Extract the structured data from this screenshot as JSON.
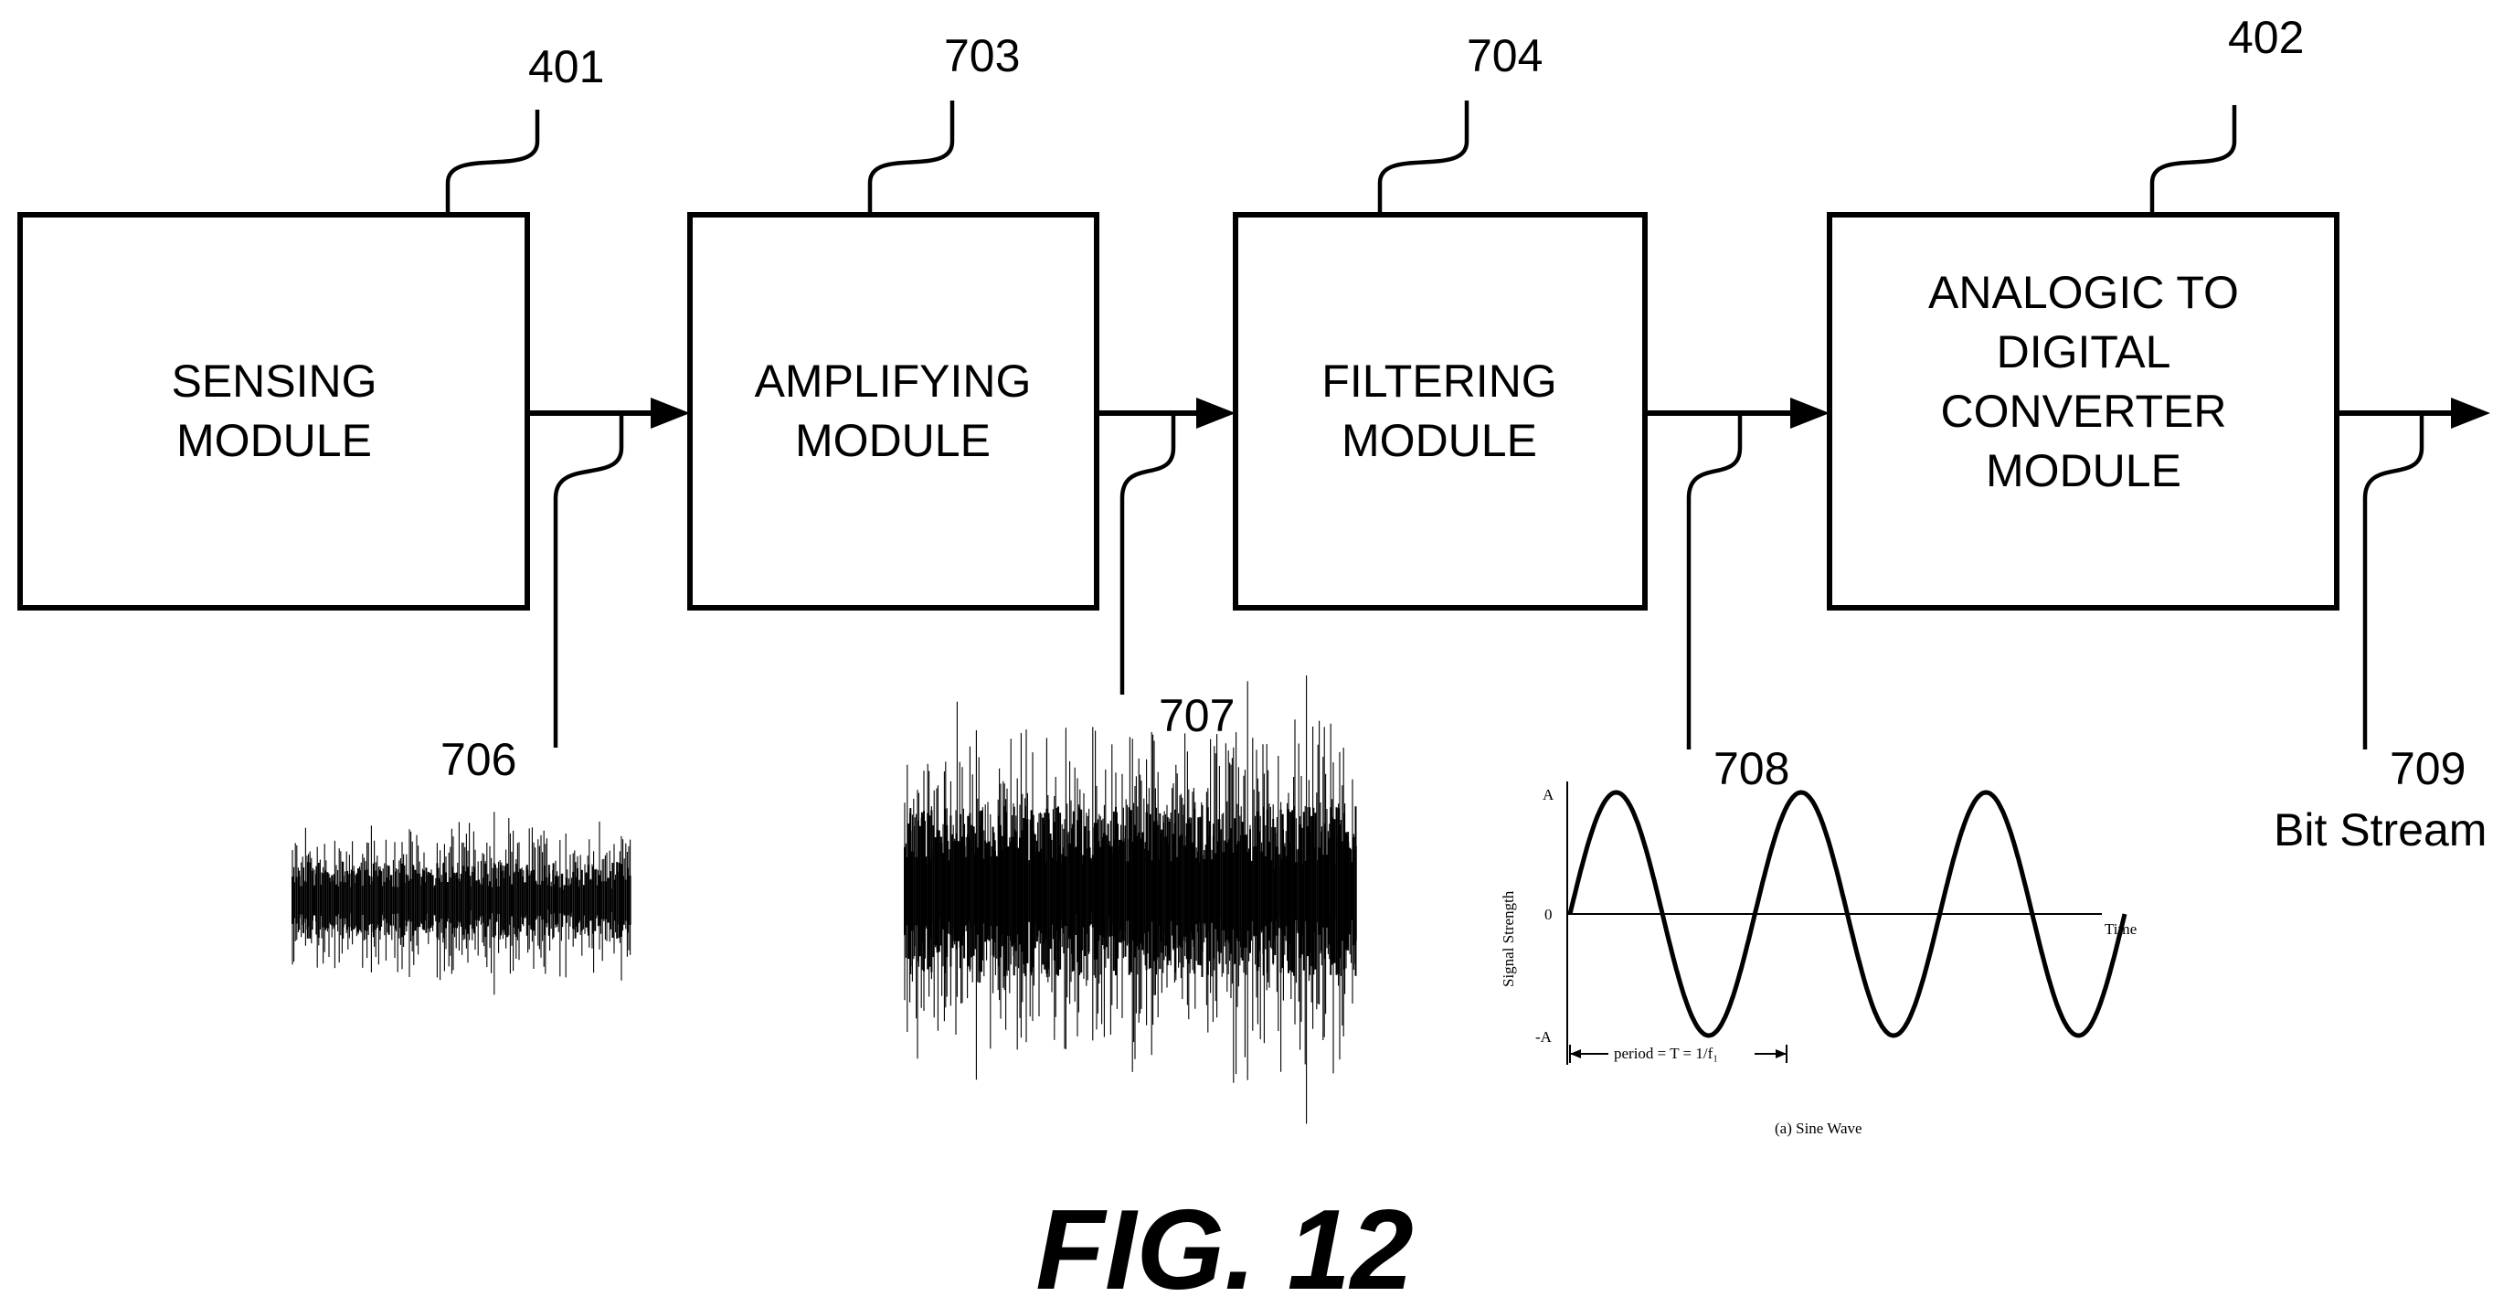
{
  "modules": {
    "sensing": {
      "ref": "401",
      "lines": [
        "SENSING",
        "MODULE"
      ]
    },
    "amplifying": {
      "ref": "703",
      "lines": [
        "AMPLIFYING",
        "MODULE"
      ]
    },
    "filtering": {
      "ref": "704",
      "lines": [
        "FILTERING",
        "MODULE"
      ]
    },
    "adc": {
      "ref": "402",
      "lines": [
        "ANALOGIC TO",
        "DIGITAL",
        "CONVERTER",
        "MODULE"
      ]
    }
  },
  "signals": {
    "raw": {
      "ref": "706"
    },
    "amplified": {
      "ref": "707"
    },
    "filtered": {
      "ref": "708"
    },
    "output": {
      "ref": "709",
      "label": "Bit Stream"
    }
  },
  "sine_plot": {
    "y_axis_label": "Signal Strength",
    "x_axis_label": "Time",
    "tick_top": "A",
    "tick_zero": "0",
    "tick_bottom": "-A",
    "period_label": "period = T = 1/f₁",
    "caption": "(a) Sine Wave",
    "cycles": 3
  },
  "figure_label": "FIG. 12",
  "colors": {
    "ink": "#000000",
    "paper": "#ffffff"
  }
}
